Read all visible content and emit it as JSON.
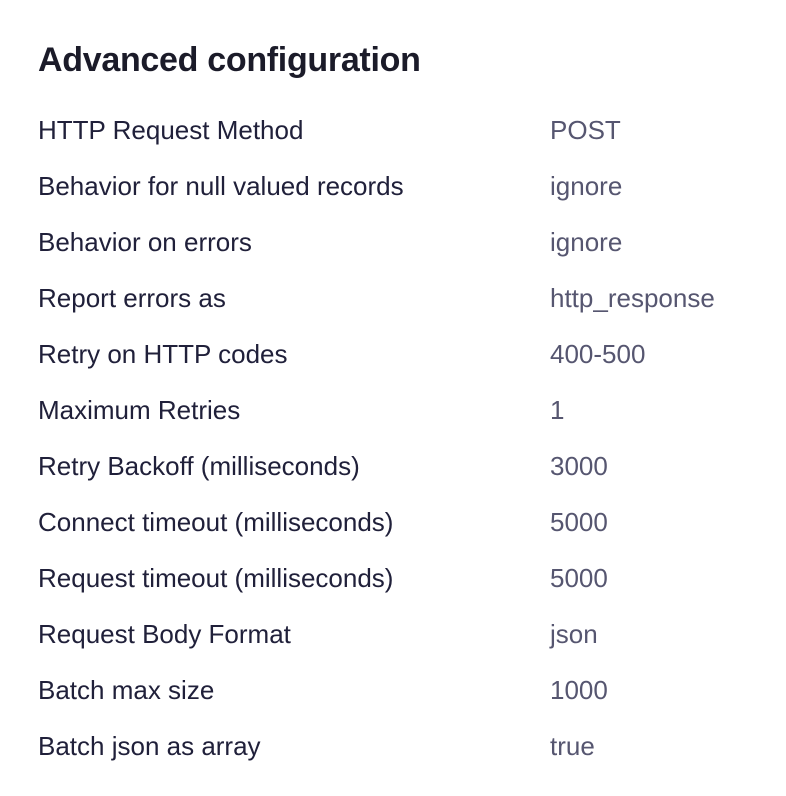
{
  "title": "Advanced configuration",
  "rows": [
    {
      "label": "HTTP Request Method",
      "value": "POST"
    },
    {
      "label": "Behavior for null valued records",
      "value": "ignore"
    },
    {
      "label": "Behavior on errors",
      "value": "ignore"
    },
    {
      "label": "Report errors as",
      "value": "http_response"
    },
    {
      "label": "Retry on HTTP codes",
      "value": "400-500"
    },
    {
      "label": "Maximum Retries",
      "value": "1"
    },
    {
      "label": "Retry Backoff (milliseconds)",
      "value": "3000"
    },
    {
      "label": "Connect timeout (milliseconds)",
      "value": "5000"
    },
    {
      "label": "Request timeout (milliseconds)",
      "value": "5000"
    },
    {
      "label": "Request Body Format",
      "value": "json"
    },
    {
      "label": "Batch max size",
      "value": "1000"
    },
    {
      "label": "Batch json as array",
      "value": "true"
    }
  ]
}
